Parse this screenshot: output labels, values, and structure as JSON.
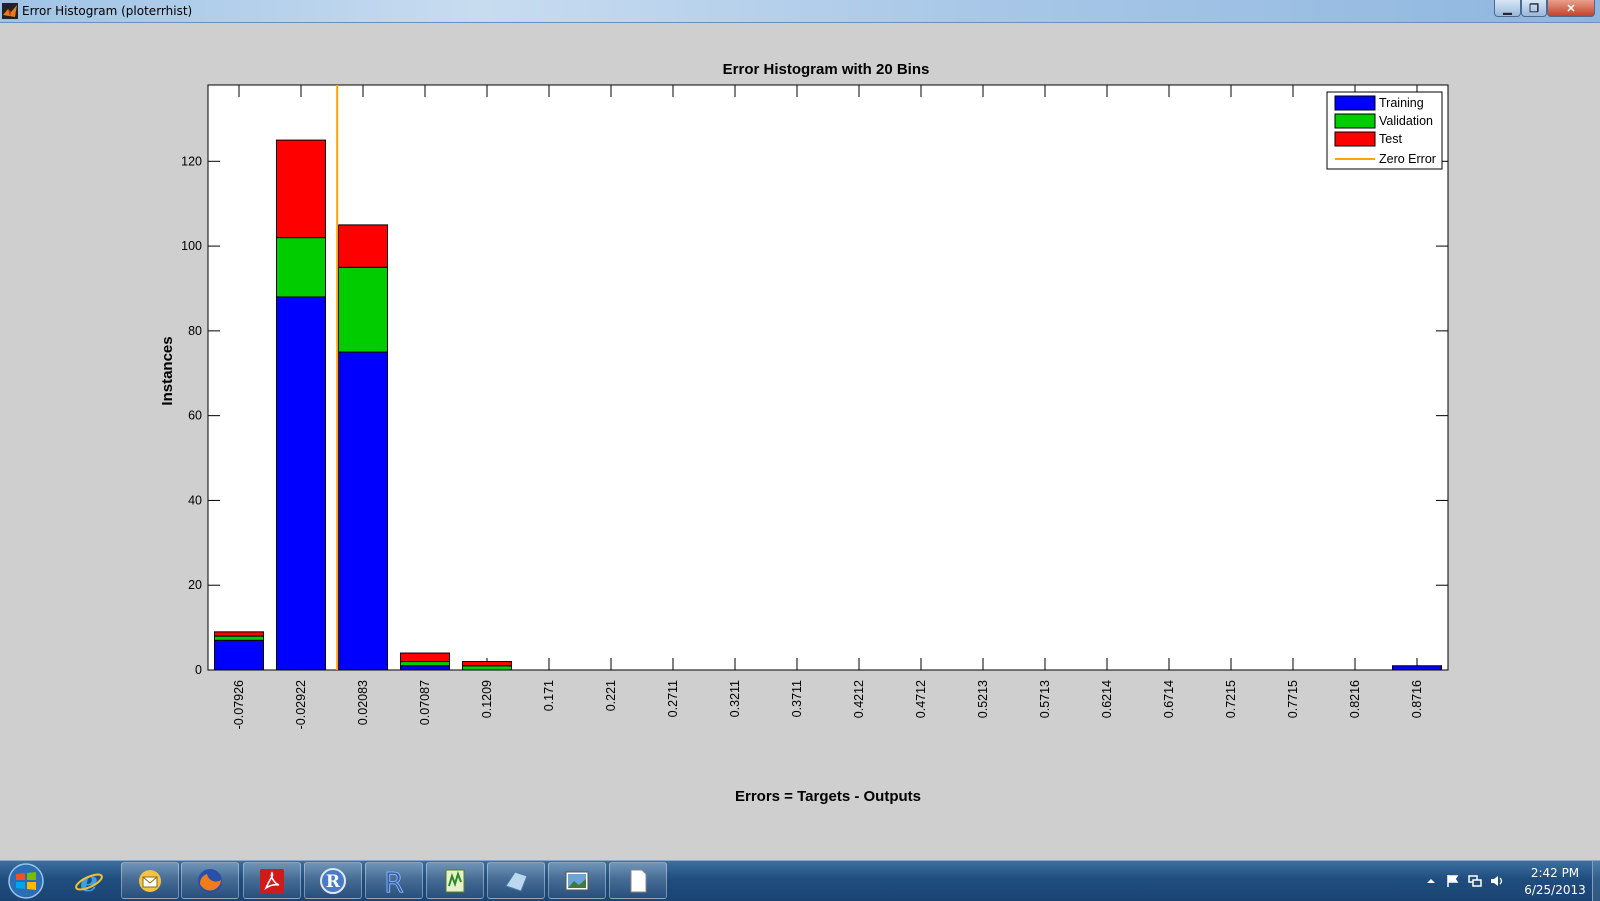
{
  "window": {
    "title": "Error Histogram (ploterrhist)",
    "controls": [
      "minimize",
      "maximize",
      "close"
    ]
  },
  "colors": {
    "training": "#0000ff",
    "validation": "#00cc00",
    "test": "#ff0000",
    "zero_error": "#ffa500"
  },
  "chart_data": {
    "type": "bar",
    "stacked": true,
    "title": "Error Histogram with 20 Bins",
    "xlabel": "Errors = Targets - Outputs",
    "ylabel": "Instances",
    "ylim": [
      0,
      138
    ],
    "yticks": [
      0,
      20,
      40,
      60,
      80,
      100,
      120
    ],
    "categories": [
      "-0.07926",
      "-0.02922",
      "0.02083",
      "0.07087",
      "0.1209",
      "0.171",
      "0.221",
      "0.2711",
      "0.3211",
      "0.3711",
      "0.4212",
      "0.4712",
      "0.5213",
      "0.5713",
      "0.6214",
      "0.6714",
      "0.7215",
      "0.7715",
      "0.8216",
      "0.8716"
    ],
    "series": [
      {
        "name": "Training",
        "values": [
          7,
          88,
          75,
          1,
          0,
          0,
          0,
          0,
          0,
          0,
          0,
          0,
          0,
          0,
          0,
          0,
          0,
          0,
          0,
          1
        ]
      },
      {
        "name": "Validation",
        "values": [
          1,
          14,
          20,
          1,
          1,
          0,
          0,
          0,
          0,
          0,
          0,
          0,
          0,
          0,
          0,
          0,
          0,
          0,
          0,
          0
        ]
      },
      {
        "name": "Test",
        "values": [
          1,
          23,
          10,
          2,
          1,
          0,
          0,
          0,
          0,
          0,
          0,
          0,
          0,
          0,
          0,
          0,
          0,
          0,
          0,
          0
        ]
      }
    ],
    "zero_error": {
      "name": "Zero Error",
      "x": 0
    },
    "legend_position": "top-right"
  },
  "taskbar": {
    "items": [
      "windows-explorer",
      "internet-explorer",
      "outlook",
      "firefox",
      "adobe-reader",
      "r-gui",
      "rstudio",
      "notepad-plus",
      "matlab",
      "photo-viewer",
      "blank-document"
    ],
    "clock_time": "2:42 PM",
    "clock_date": "6/25/2013"
  }
}
